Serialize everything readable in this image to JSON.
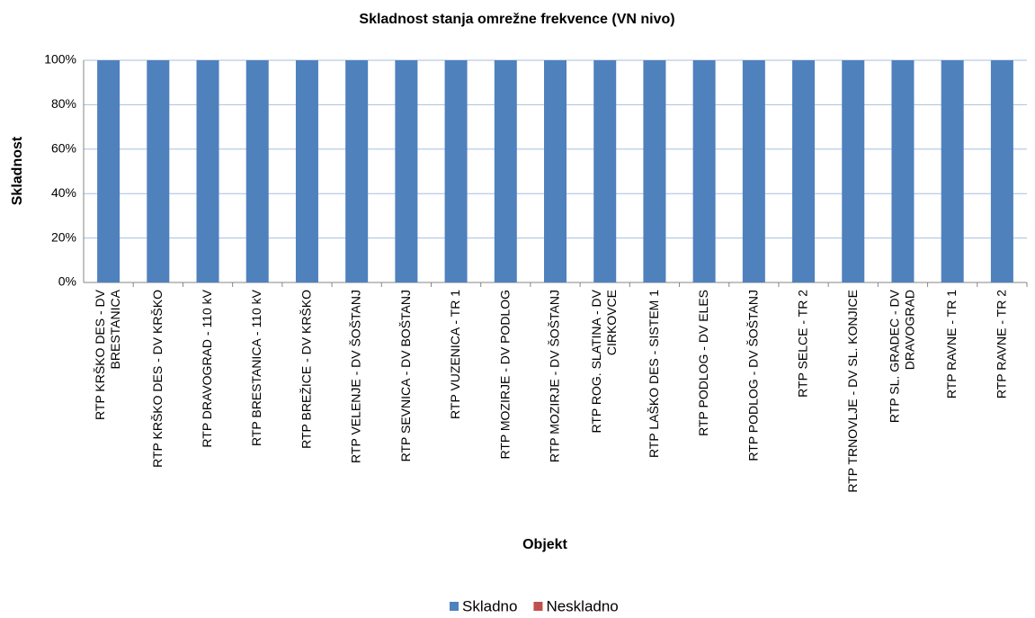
{
  "chart_data": {
    "type": "stacked_bar",
    "title": "Skladnost stanja omrežne frekvence (VN nivo)",
    "x_label": "Objekt",
    "y_label": "Skladnost",
    "categories": [
      "RTP KRŠKO DES - DV\nBRESTANICA",
      "RTP KRŠKO DES - DV KRŠKO",
      "RTP DRAVOGRAD - 110 kV",
      "RTP BRESTANICA - 110 kV",
      "RTP BREŽICE - DV KRŠKO",
      "RTP VELENJE - DV ŠOŠTANJ",
      "RTP SEVNICA - DV BOŠTANJ",
      "RTP VUZENICA - TR 1",
      "RTP MOZIRJE - DV PODLOG",
      "RTP MOZIRJE - DV ŠOŠTANJ",
      "RTP ROG. SLATINA - DV\nCIRKOVCE",
      "RTP LAŠKO DES - SISTEM 1",
      "RTP PODLOG - DV ELES",
      "RTP PODLOG - DV ŠOŠTANJ",
      "RTP SELCE - TR 2",
      "RTP TRNOVLJE - DV SL. KONJICE",
      "RTP SL. GRADEC - DV\nDRAVOGRAD",
      "RTP RAVNE - TR 1",
      "RTP RAVNE - TR 2"
    ],
    "series": [
      {
        "name": "Skladno",
        "color": "#4f81bd",
        "values": [
          100,
          100,
          100,
          100,
          100,
          100,
          100,
          100,
          100,
          100,
          100,
          100,
          100,
          100,
          100,
          100,
          100,
          100,
          100
        ]
      },
      {
        "name": "Neskladno",
        "color": "#c0504d",
        "values": [
          0,
          0,
          0,
          0,
          0,
          0,
          0,
          0,
          0,
          0,
          0,
          0,
          0,
          0,
          0,
          0,
          0,
          0,
          0
        ]
      }
    ],
    "ylim": [
      0,
      100
    ],
    "yticks": [
      {
        "value": 0,
        "label": "0%"
      },
      {
        "value": 20,
        "label": "20%"
      },
      {
        "value": 40,
        "label": "40%"
      },
      {
        "value": 60,
        "label": "60%"
      },
      {
        "value": 80,
        "label": "80%"
      },
      {
        "value": 100,
        "label": "100%"
      }
    ],
    "grid": true,
    "legend": "bottom"
  }
}
